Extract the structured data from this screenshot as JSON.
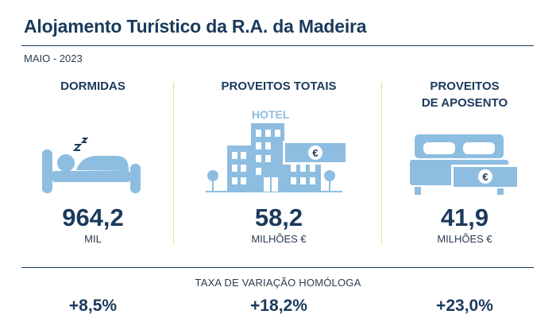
{
  "header": {
    "title": "Alojamento Turístico da R.A. da Madeira",
    "period": "MAIO - 2023"
  },
  "icon_color": "#8dbde0",
  "accent_divider_color": "#f3dc7c",
  "text_color": "#1b3a5c",
  "indicators": [
    {
      "title_lines": [
        "DORMIDAS"
      ],
      "value": "964,2",
      "unit": "MIL",
      "icon": "sleeping-person-bed-icon"
    },
    {
      "title_lines": [
        "PROVEITOS TOTAIS"
      ],
      "value": "58,2",
      "unit": "MILHÕES €",
      "icon": "hotel-building-icon",
      "icon_text": "HOTEL",
      "badge": "€"
    },
    {
      "title_lines": [
        "PROVEITOS",
        "DE APOSENTO"
      ],
      "value": "41,9",
      "unit": "MILHÕES €",
      "icon": "double-bed-icon",
      "badge": "€"
    }
  ],
  "variation": {
    "label": "TAXA DE VARIAÇÃO HOMÓLOGA",
    "values": [
      "+8,5%",
      "+18,2%",
      "+23,0%"
    ]
  }
}
